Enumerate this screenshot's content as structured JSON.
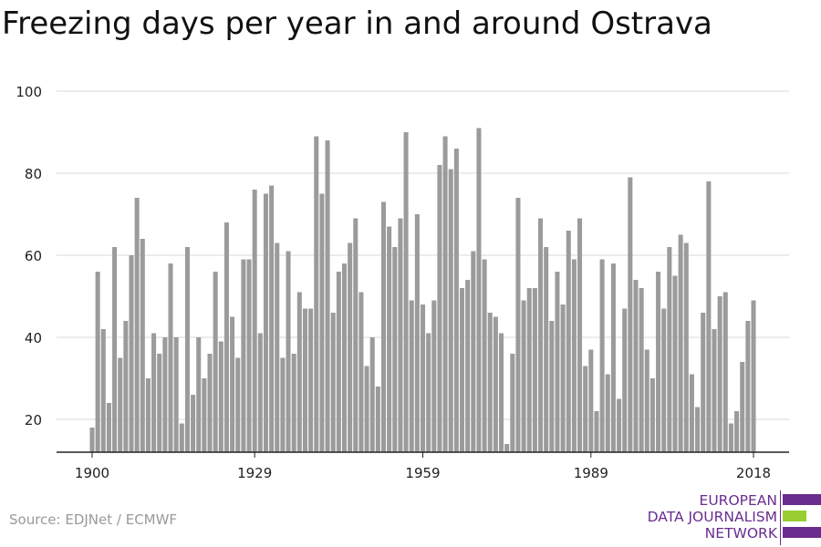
{
  "title": "Freezing days per year in and around Ostrava",
  "source": "Source: EDJNet / ECMWF",
  "logo": {
    "lines": [
      "EUROPEAN",
      "DATA JOURNALISM",
      "NETWORK"
    ],
    "color_primary": "#6a2d8f",
    "color_accent": "#9acd32"
  },
  "chart_data": {
    "type": "bar",
    "x_start": 1900,
    "x": [
      1900,
      1901,
      1902,
      1903,
      1904,
      1905,
      1906,
      1907,
      1908,
      1909,
      1910,
      1911,
      1912,
      1913,
      1914,
      1915,
      1916,
      1917,
      1918,
      1919,
      1920,
      1921,
      1922,
      1923,
      1924,
      1925,
      1926,
      1927,
      1928,
      1929,
      1930,
      1931,
      1932,
      1933,
      1934,
      1935,
      1936,
      1937,
      1938,
      1939,
      1940,
      1941,
      1942,
      1943,
      1944,
      1945,
      1946,
      1947,
      1948,
      1949,
      1950,
      1951,
      1952,
      1953,
      1954,
      1955,
      1956,
      1957,
      1958,
      1959,
      1960,
      1961,
      1962,
      1963,
      1964,
      1965,
      1966,
      1967,
      1968,
      1969,
      1970,
      1971,
      1972,
      1973,
      1974,
      1975,
      1976,
      1977,
      1978,
      1979,
      1980,
      1981,
      1982,
      1983,
      1984,
      1985,
      1986,
      1987,
      1988,
      1989,
      1990,
      1991,
      1992,
      1993,
      1994,
      1995,
      1996,
      1997,
      1998,
      1999,
      2000,
      2001,
      2002,
      2003,
      2004,
      2005,
      2006,
      2007,
      2008,
      2009,
      2010,
      2011,
      2012,
      2013,
      2014,
      2015,
      2016,
      2017,
      2018
    ],
    "values": [
      18,
      56,
      42,
      24,
      62,
      35,
      44,
      60,
      74,
      64,
      30,
      41,
      36,
      40,
      58,
      40,
      19,
      62,
      26,
      40,
      30,
      36,
      56,
      39,
      68,
      45,
      35,
      59,
      59,
      76,
      41,
      75,
      77,
      63,
      35,
      61,
      36,
      51,
      47,
      47,
      89,
      75,
      88,
      46,
      56,
      58,
      63,
      69,
      51,
      33,
      40,
      28,
      73,
      67,
      62,
      69,
      90,
      49,
      70,
      48,
      41,
      49,
      82,
      89,
      81,
      86,
      52,
      54,
      61,
      91,
      59,
      46,
      45,
      41,
      14,
      36,
      74,
      49,
      52,
      52,
      69,
      62,
      44,
      56,
      48,
      66,
      59,
      69,
      33,
      37,
      22,
      59,
      31,
      58,
      25,
      47,
      79,
      54,
      52,
      37,
      30,
      56,
      47,
      62,
      55,
      65,
      63,
      31,
      23,
      46,
      78,
      42,
      50,
      51,
      19,
      22,
      34,
      44,
      49
    ],
    "x_ticks": [
      1900,
      1929,
      1959,
      1989,
      2018
    ],
    "y_ticks": [
      20,
      40,
      60,
      80,
      100
    ],
    "ylim": [
      12,
      100
    ],
    "bar_color": "#9b9b9b",
    "grid_color": "#d9d9d9",
    "grid": true
  }
}
